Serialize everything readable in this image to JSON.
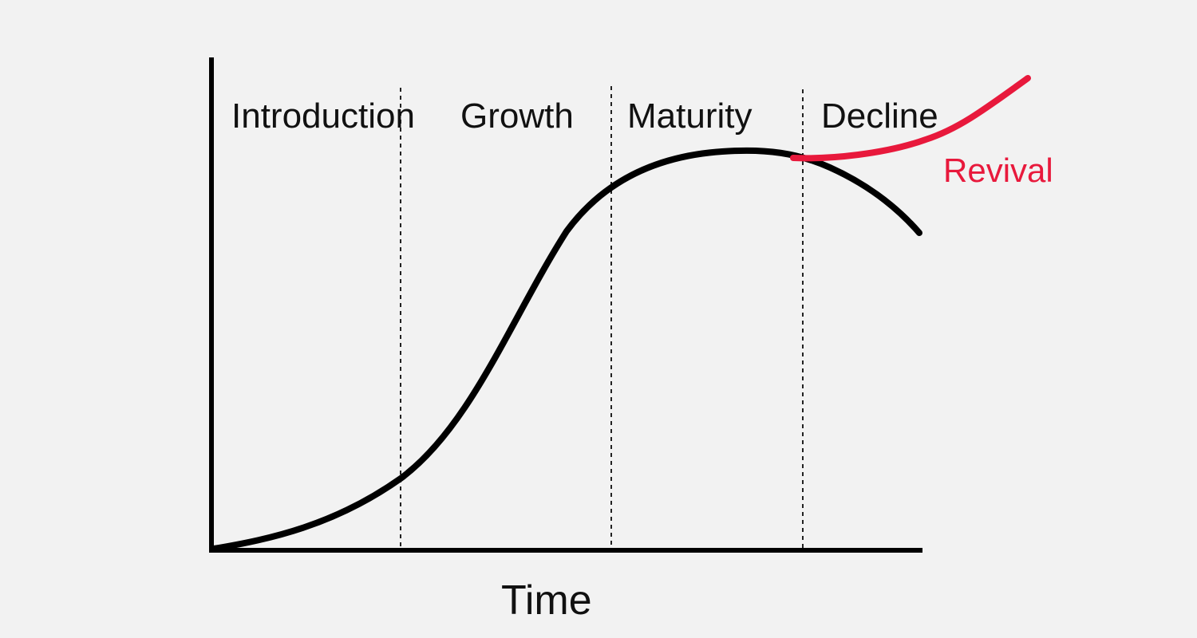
{
  "diagram": {
    "x_axis_label": "Time",
    "stages": [
      {
        "label": "Introduction"
      },
      {
        "label": "Growth"
      },
      {
        "label": "Maturity"
      },
      {
        "label": "Decline"
      }
    ],
    "revival": {
      "label": "Revival"
    }
  },
  "colors": {
    "background": "#f2f2f2",
    "curve": "#000000",
    "revival": "#e8193c",
    "divider": "#222222"
  }
}
